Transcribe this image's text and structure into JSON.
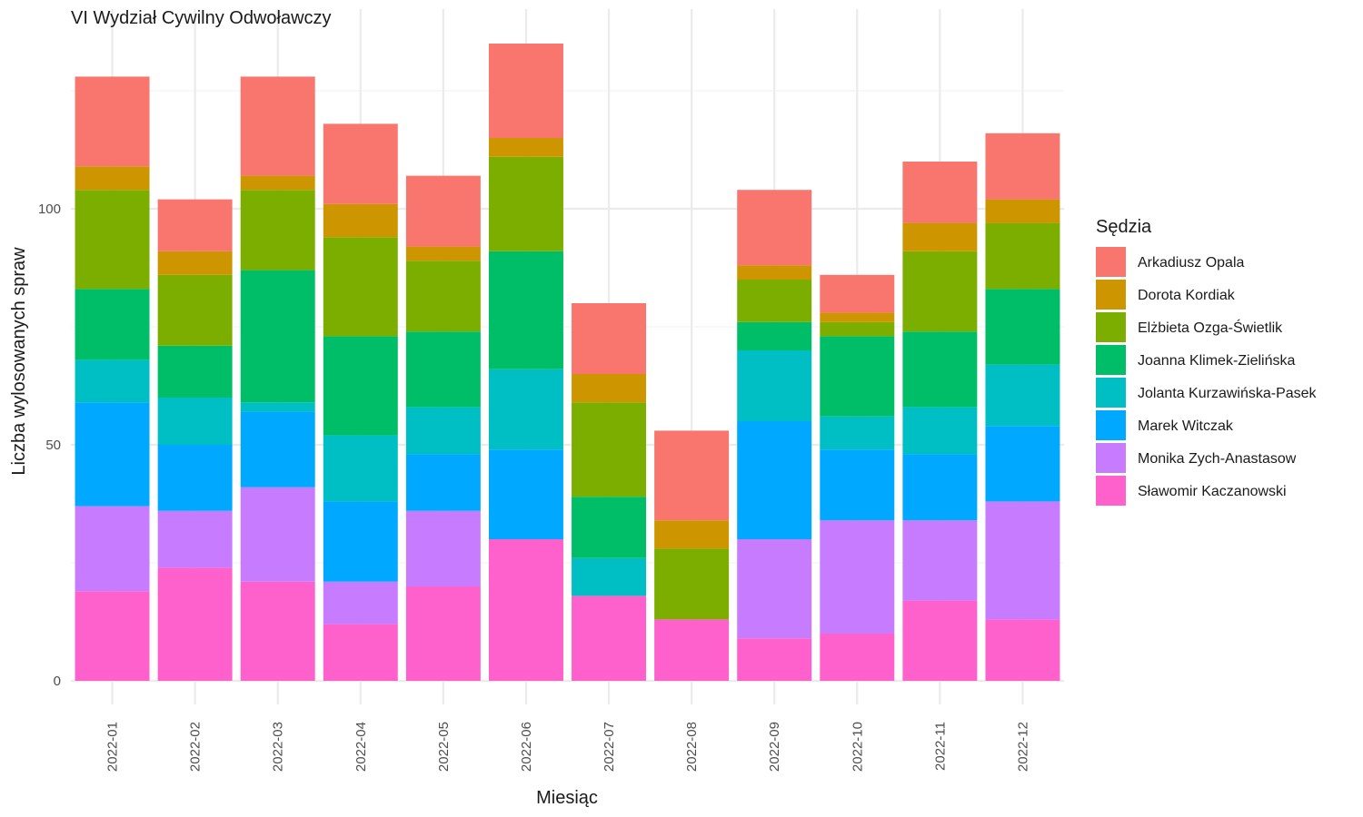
{
  "chart_data": {
    "type": "bar",
    "stacked": true,
    "title": "VI Wydział Cywilny Odwoławczy",
    "xlabel": "Miesiąc",
    "ylabel": "Liczba wylosowanych spraw",
    "ylim": [
      0,
      141
    ],
    "yticks": [
      0,
      50,
      100
    ],
    "grid": true,
    "legend_position": "right",
    "legend_title": "Sędzia",
    "categories": [
      "2022-01",
      "2022-02",
      "2022-03",
      "2022-04",
      "2022-05",
      "2022-06",
      "2022-07",
      "2022-08",
      "2022-09",
      "2022-10",
      "2022-11",
      "2022-12"
    ],
    "series": [
      {
        "name": "Arkadiusz Opala",
        "color": "#F8766D",
        "values": [
          19,
          11,
          21,
          17,
          15,
          20,
          15,
          19,
          16,
          8,
          13,
          14
        ]
      },
      {
        "name": "Dorota Kordiak",
        "color": "#CD9600",
        "values": [
          5,
          5,
          3,
          7,
          3,
          4,
          6,
          6,
          3,
          2,
          6,
          5
        ]
      },
      {
        "name": "Elżbieta Ozga-Świetlik",
        "color": "#7CAE00",
        "values": [
          21,
          15,
          17,
          21,
          15,
          20,
          20,
          15,
          9,
          3,
          17,
          14
        ]
      },
      {
        "name": "Joanna Klimek-Zielińska",
        "color": "#00BE67",
        "values": [
          15,
          11,
          28,
          21,
          16,
          25,
          13,
          0,
          6,
          17,
          16,
          16
        ]
      },
      {
        "name": "Jolanta Kurzawińska-Pasek",
        "color": "#00BFC4",
        "values": [
          9,
          10,
          2,
          14,
          10,
          17,
          8,
          0,
          15,
          7,
          10,
          13
        ]
      },
      {
        "name": "Marek Witczak",
        "color": "#00A9FF",
        "values": [
          22,
          14,
          16,
          17,
          12,
          19,
          0,
          0,
          25,
          15,
          14,
          16
        ]
      },
      {
        "name": "Monika Zych-Anastasow",
        "color": "#C77CFF",
        "values": [
          18,
          12,
          20,
          9,
          16,
          0,
          0,
          0,
          21,
          24,
          17,
          25
        ]
      },
      {
        "name": "Sławomir Kaczanowski",
        "color": "#FF61CC",
        "values": [
          19,
          24,
          21,
          12,
          20,
          30,
          18,
          13,
          9,
          10,
          17,
          13
        ]
      }
    ]
  }
}
